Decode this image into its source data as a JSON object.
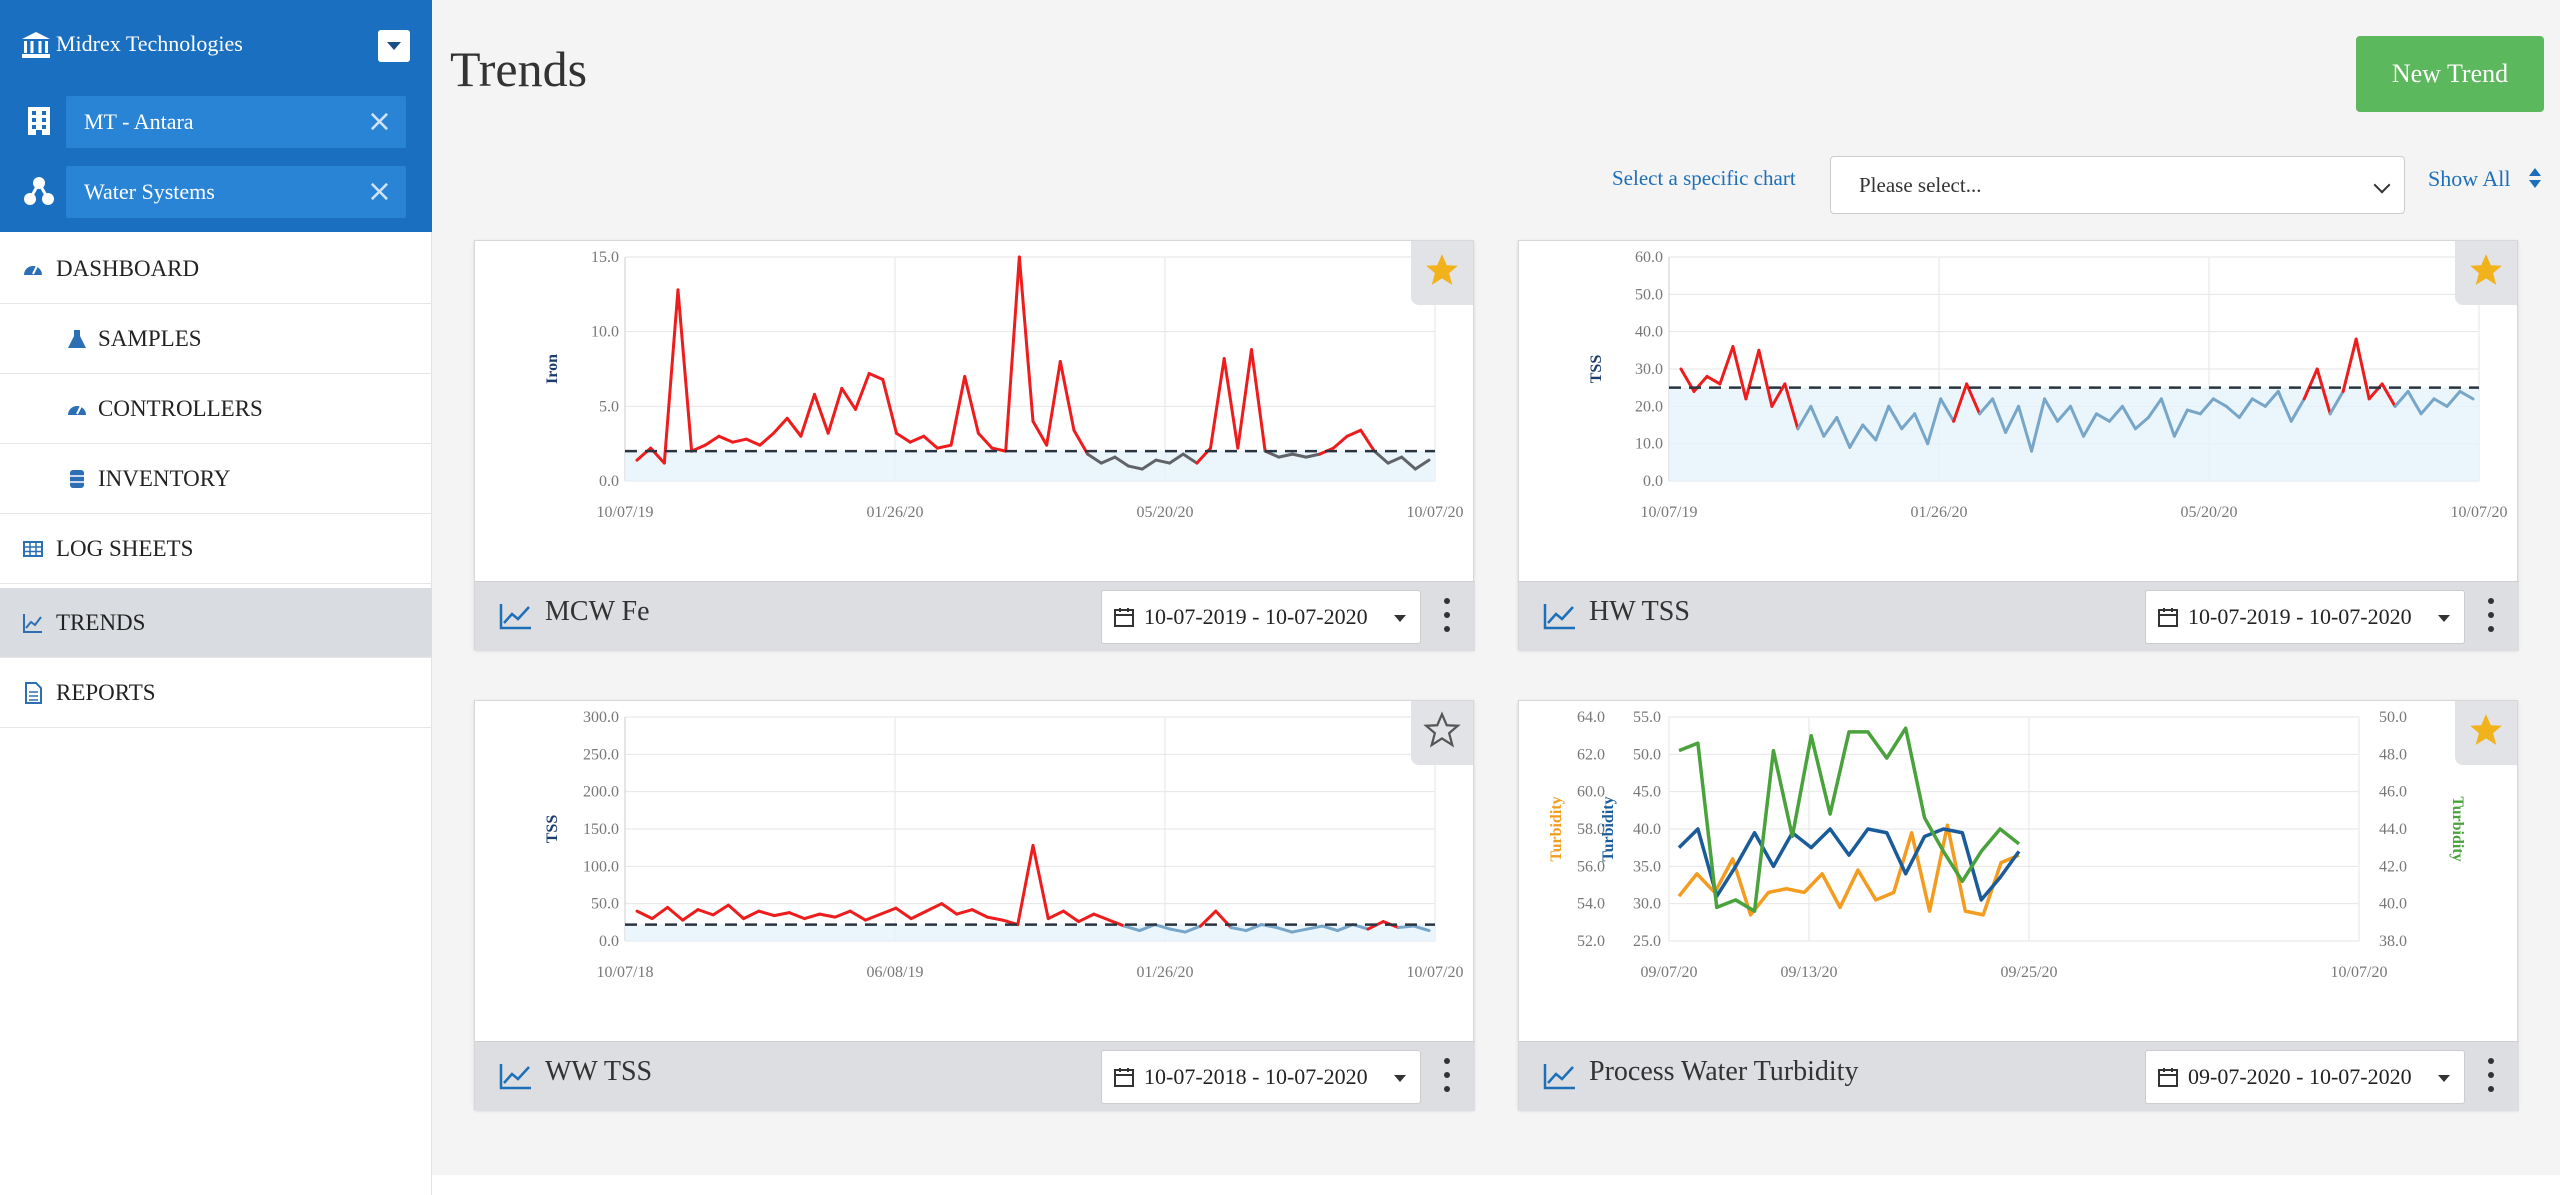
{
  "sidebar": {
    "company": "Midrex Technologies",
    "scopes": [
      {
        "label": "MT - Antara",
        "icon": "building-icon"
      },
      {
        "label": "Water Systems",
        "icon": "sitemap-icon"
      }
    ],
    "nav": [
      {
        "label": "DASHBOARD",
        "icon": "dashboard-icon",
        "active": false
      },
      {
        "label": "SAMPLES",
        "icon": "flask-icon",
        "active": false
      },
      {
        "label": "CONTROLLERS",
        "icon": "dashboard-icon",
        "active": false
      },
      {
        "label": "INVENTORY",
        "icon": "drum-icon",
        "active": false
      },
      {
        "label": "LOG SHEETS",
        "icon": "table-icon",
        "active": false
      },
      {
        "label": "TRENDS",
        "icon": "line-chart-icon",
        "active": true
      },
      {
        "label": "REPORTS",
        "icon": "document-icon",
        "active": false
      }
    ]
  },
  "header": {
    "title": "Trends",
    "new_trend_label": "New Trend",
    "select_label": "Select a specific chart",
    "select_value": "Please select...",
    "show_all_label": "Show All"
  },
  "colors": {
    "accent": "#1a6fc0",
    "green_button": "#5cb85c",
    "above_limit": "#ee1c1c",
    "below_limit_blue": "#78a6c8",
    "below_limit_gray": "#606469",
    "star_gold": "#f2b21c",
    "turbidity_orange": "#f39c1f",
    "turbidity_blue": "#1a5b9a",
    "turbidity_green": "#4aa23c"
  },
  "cards": [
    {
      "title": "MCW Fe",
      "date_range": "10-07-2019 - 10-07-2020",
      "favorite": true
    },
    {
      "title": "HW TSS",
      "date_range": "10-07-2019 - 10-07-2020",
      "favorite": true
    },
    {
      "title": "WW TSS",
      "date_range": "10-07-2018 - 10-07-2020",
      "favorite": false
    },
    {
      "title": "Process Water Turbidity",
      "date_range": "09-07-2020 - 10-07-2020",
      "favorite": true
    }
  ],
  "chart_data": [
    {
      "type": "line",
      "title": "MCW Fe",
      "ylabel": "Iron",
      "ylim": [
        0,
        15
      ],
      "y_ticks": [
        "0.0",
        "5.0",
        "10.0",
        "15.0"
      ],
      "x_ticks": [
        "10/07/19",
        "01/26/20",
        "05/20/20",
        "10/07/20"
      ],
      "limit_line": 2.0,
      "series": [
        {
          "values": [
            1.4,
            2.2,
            1.2,
            12.8,
            2.0,
            2.4,
            3.0,
            2.6,
            2.8,
            2.4,
            3.2,
            4.2,
            3.0,
            5.8,
            3.2,
            6.2,
            4.8,
            7.2,
            6.8,
            3.2,
            2.6,
            3.0,
            2.2,
            2.4,
            7.0,
            3.2,
            2.2,
            2.0,
            15.0,
            4.0,
            2.4,
            8.0,
            3.4,
            1.8,
            1.2,
            1.6,
            1.0,
            0.8,
            1.4,
            1.2,
            1.8,
            1.2,
            2.2,
            8.2,
            2.2,
            8.8,
            2.0,
            1.6,
            1.8,
            1.6,
            1.8,
            2.2,
            3.0,
            3.4,
            2.0,
            1.2,
            1.6,
            0.8,
            1.4
          ]
        }
      ],
      "grid": true,
      "legend": "none"
    },
    {
      "type": "line",
      "title": "HW TSS",
      "ylabel": "TSS",
      "ylim": [
        0,
        60
      ],
      "y_ticks": [
        "0.0",
        "10.0",
        "20.0",
        "30.0",
        "40.0",
        "50.0",
        "60.0"
      ],
      "x_ticks": [
        "10/07/19",
        "01/26/20",
        "05/20/20",
        "10/07/20"
      ],
      "limit_line": 25.0,
      "series": [
        {
          "values": [
            30,
            24,
            28,
            26,
            36,
            22,
            35,
            20,
            26,
            14,
            20,
            12,
            17,
            9,
            15,
            11,
            20,
            14,
            18,
            10,
            22,
            16,
            26,
            18,
            22,
            13,
            20,
            8,
            22,
            16,
            20,
            12,
            18,
            16,
            20,
            14,
            17,
            22,
            12,
            19,
            18,
            22,
            20,
            17,
            22,
            20,
            24,
            16,
            22,
            30,
            18,
            24,
            38,
            22,
            26,
            20,
            24,
            18,
            22,
            20,
            24,
            22
          ]
        }
      ],
      "grid": true,
      "legend": "none"
    },
    {
      "type": "line",
      "title": "WW TSS",
      "ylabel": "TSS",
      "ylim": [
        0,
        300
      ],
      "y_ticks": [
        "0.0",
        "50.0",
        "100.0",
        "150.0",
        "200.0",
        "250.0",
        "300.0"
      ],
      "x_ticks": [
        "10/07/18",
        "06/08/19",
        "01/26/20",
        "10/07/20"
      ],
      "limit_line": 22.0,
      "series": [
        {
          "values": [
            40,
            30,
            45,
            28,
            42,
            35,
            48,
            30,
            40,
            34,
            38,
            30,
            36,
            32,
            40,
            28,
            36,
            44,
            30,
            40,
            50,
            36,
            42,
            32,
            28,
            22,
            128,
            30,
            40,
            26,
            36,
            28,
            20,
            14,
            22,
            16,
            12,
            20,
            40,
            18,
            14,
            22,
            18,
            12,
            16,
            20,
            14,
            22,
            16,
            26,
            18,
            20,
            14
          ]
        }
      ],
      "grid": true,
      "legend": "none"
    },
    {
      "type": "line",
      "title": "Process Water Turbidity",
      "x_ticks": [
        "09/07/20",
        "09/13/20",
        "09/25/20",
        "10/07/20"
      ],
      "axes": [
        {
          "label": "Turbidity",
          "side": "left-outer",
          "ylim": [
            52,
            64
          ],
          "ticks": [
            "52.0",
            "54.0",
            "56.0",
            "58.0",
            "60.0",
            "62.0",
            "64.0"
          ]
        },
        {
          "label": "Turbidity",
          "side": "left-inner",
          "ylim": [
            25,
            55
          ],
          "ticks": [
            "25.0",
            "30.0",
            "35.0",
            "40.0",
            "45.0",
            "50.0",
            "55.0"
          ]
        },
        {
          "label": "Turbidity",
          "side": "right",
          "ylim": [
            38,
            50
          ],
          "ticks": [
            "38.0",
            "40.0",
            "42.0",
            "44.0",
            "46.0",
            "48.0",
            "50.0"
          ]
        }
      ],
      "series": [
        {
          "axis": 0,
          "values": [
            54.4,
            55.6,
            54.6,
            56.4,
            53.4,
            54.6,
            54.8,
            54.6,
            55.6,
            53.8,
            55.8,
            54.2,
            54.6,
            57.8,
            53.6,
            58.2,
            53.6,
            53.4,
            56.2,
            56.6
          ]
        },
        {
          "axis": 1,
          "values": [
            37.5,
            40.0,
            31.0,
            35.0,
            39.5,
            35.0,
            39.5,
            37.5,
            40.0,
            36.5,
            40.0,
            39.5,
            34.0,
            39.0,
            40.0,
            39.5,
            30.5,
            33.5,
            37.0
          ]
        },
        {
          "axis": 2,
          "values": [
            48.2,
            48.6,
            39.8,
            40.2,
            39.6,
            48.2,
            43.6,
            49.0,
            44.8,
            49.2,
            49.2,
            47.8,
            49.4,
            44.6,
            42.8,
            41.2,
            42.8,
            44.0,
            43.2
          ]
        }
      ],
      "grid": true,
      "legend": "none"
    }
  ]
}
